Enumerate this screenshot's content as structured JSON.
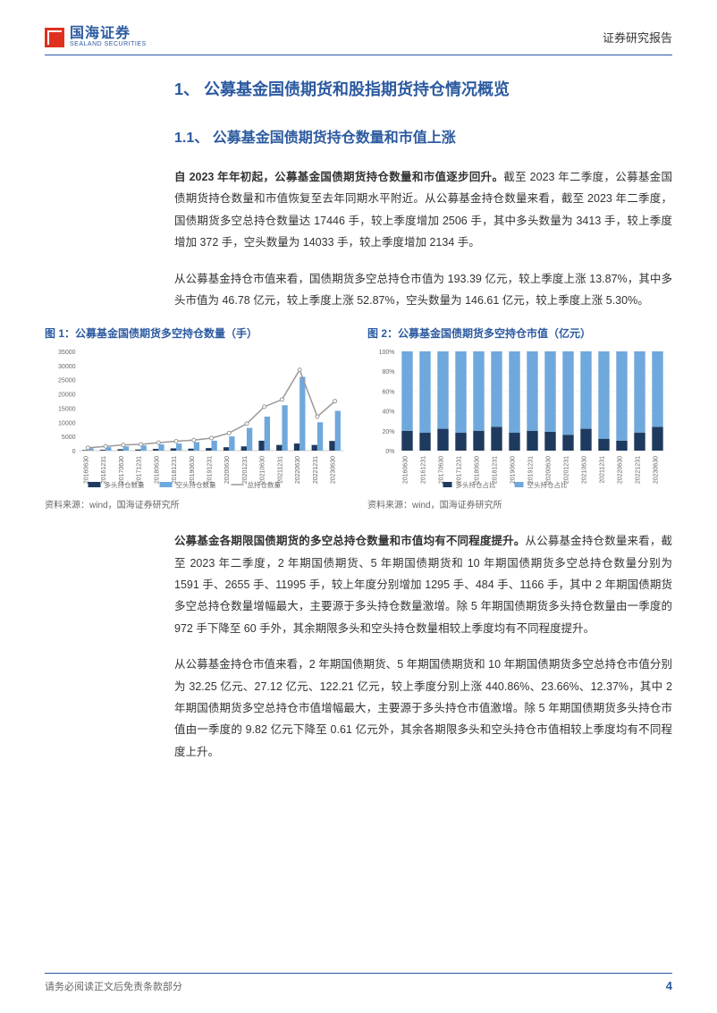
{
  "header": {
    "logo_cn": "国海证券",
    "logo_en": "SEALAND SECURITIES",
    "right_label": "证券研究报告"
  },
  "section1": {
    "title": "1、 公募基金国债期货和股指期货持仓情况概览"
  },
  "section11": {
    "title": "1.1、 公募基金国债期货持仓数量和市值上涨"
  },
  "para1": {
    "lead": "自 2023 年年初起，公募基金国债期货持仓数量和市值逐步回升。",
    "rest": "截至 2023 年二季度，公募基金国债期货持仓数量和市值恢复至去年同期水平附近。从公募基金持仓数量来看，截至 2023 年二季度，国债期货多空总持仓数量达 17446 手，较上季度增加 2506 手，其中多头数量为 3413 手，较上季度增加 372 手，空头数量为 14033 手，较上季度增加 2134 手。"
  },
  "para2": "从公募基金持仓市值来看，国债期货多空总持仓市值为 193.39 亿元，较上季度上涨 13.87%，其中多头市值为 46.78 亿元，较上季度上涨 52.87%，空头数量为 146.61 亿元，较上季度上涨 5.30%。",
  "fig1": {
    "title": "图 1：公募基金国债期货多空持仓数量（手）",
    "source": "资料来源：wind，国海证券研究所",
    "type": "bar_line",
    "categories": [
      "20160630",
      "20161231",
      "20170630",
      "20171231",
      "20180630",
      "20181231",
      "20190630",
      "20191231",
      "20200630",
      "20201231",
      "20210630",
      "20211231",
      "20220630",
      "20221231",
      "20230630"
    ],
    "long": [
      200,
      300,
      500,
      400,
      600,
      800,
      700,
      900,
      1200,
      1500,
      3500,
      2000,
      2500,
      2000,
      3413
    ],
    "short": [
      800,
      1200,
      1500,
      1800,
      2200,
      2500,
      3000,
      3500,
      5000,
      8000,
      12000,
      16000,
      26000,
      10000,
      14033
    ],
    "total": [
      1000,
      1500,
      2000,
      2200,
      2800,
      3300,
      3700,
      4400,
      6200,
      9500,
      15500,
      18000,
      28500,
      12000,
      17446
    ],
    "colors": {
      "long": "#1f3a5f",
      "short": "#6fa8dc",
      "total": "#999999"
    },
    "ylim": [
      0,
      35000
    ],
    "ytick_step": 5000,
    "legend": [
      "多头持仓数量",
      "空头持仓数量",
      "总持仓数量"
    ],
    "bg": "#ffffff",
    "axis_fontsize": 7
  },
  "fig2": {
    "title": "图 2：公募基金国债期货多空持仓市值（亿元）",
    "source": "资料来源：wind，国海证券研究所",
    "type": "stacked_pct",
    "categories": [
      "20160630",
      "20161231",
      "20170630",
      "20171231",
      "20180630",
      "20181231",
      "20190630",
      "20191231",
      "20200630",
      "20201231",
      "20210630",
      "20211231",
      "20220630",
      "20221231",
      "20230630"
    ],
    "long_pct": [
      20,
      18,
      22,
      18,
      20,
      24,
      18,
      20,
      19,
      16,
      22,
      12,
      10,
      18,
      24
    ],
    "colors": {
      "long": "#1f3a5f",
      "short": "#6fa8dc"
    },
    "legend": [
      "多头持仓占比",
      "空头持仓占比"
    ],
    "ylim": [
      0,
      100
    ],
    "ytick_step": 20,
    "bg": "#ffffff",
    "axis_fontsize": 7
  },
  "para3": {
    "lead": "公募基金各期限国债期货的多空总持仓数量和市值均有不同程度提升。",
    "rest": "从公募基金持仓数量来看，截至 2023 年二季度，2 年期国债期货、5 年期国债期货和 10 年期国债期货多空总持仓数量分别为 1591 手、2655 手、11995 手，较上年度分别增加 1295 手、484 手、1166 手，其中 2 年期国债期货多空总持仓数量增幅最大，主要源于多头持仓数量激增。除 5 年期国债期货多头持仓数量由一季度的 972 手下降至 60 手外，其余期限多头和空头持仓数量相较上季度均有不同程度提升。"
  },
  "para4": "从公募基金持仓市值来看，2 年期国债期货、5 年期国债期货和 10 年期国债期货多空总持仓市值分别为 32.25 亿元、27.12 亿元、122.21 亿元，较上季度分别上涨 440.86%、23.66%、12.37%，其中 2 年期国债期货多空总持仓市值增幅最大，主要源于多头持仓市值激增。除 5 年期国债期货多头持仓市值由一季度的 9.82 亿元下降至 0.61 亿元外，其余各期限多头和空头持仓市值相较上季度均有不同程度上升。",
  "footer": {
    "disclaimer": "请务必阅读正文后免责条款部分",
    "page": "4"
  }
}
